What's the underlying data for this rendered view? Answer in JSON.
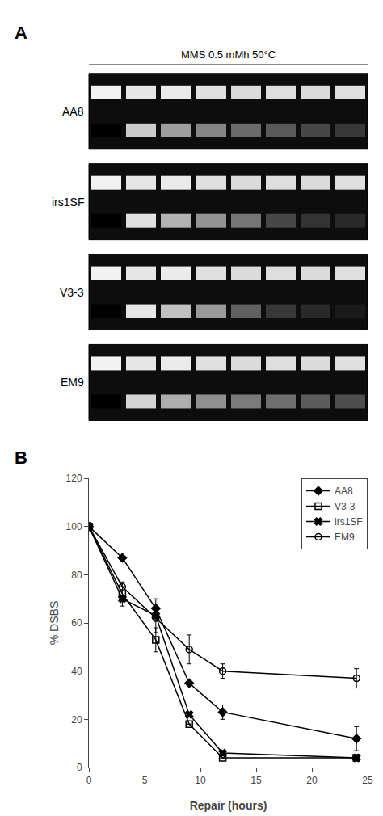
{
  "chart_data": [
    {
      "type": "heatmap",
      "title": "MMS 0.5 mMh 50°C",
      "annotations": [
        "A"
      ],
      "tick_labels": false,
      "zlim": [
        0,
        1
      ],
      "series": [
        {
          "name": "AA8",
          "values": [
            [
              0.0,
              0.8,
              0.62,
              0.52,
              0.42,
              0.35,
              0.28,
              0.22
            ],
            [
              0.95,
              0.9,
              0.92,
              0.88,
              0.86,
              0.87,
              0.86,
              0.88
            ]
          ]
        },
        {
          "name": "irs1SF",
          "values": [
            [
              0.0,
              0.88,
              0.7,
              0.58,
              0.46,
              0.28,
              0.2,
              0.16
            ],
            [
              0.95,
              0.9,
              0.92,
              0.88,
              0.86,
              0.87,
              0.86,
              0.88
            ]
          ]
        },
        {
          "name": "V3-3",
          "values": [
            [
              0.0,
              0.9,
              0.76,
              0.6,
              0.38,
              0.22,
              0.16,
              0.1
            ],
            [
              0.95,
              0.9,
              0.92,
              0.88,
              0.86,
              0.87,
              0.86,
              0.88
            ]
          ]
        },
        {
          "name": "EM9",
          "values": [
            [
              0.0,
              0.83,
              0.68,
              0.56,
              0.48,
              0.43,
              0.36,
              0.3
            ],
            [
              0.95,
              0.9,
              0.92,
              0.88,
              0.86,
              0.87,
              0.86,
              0.88
            ]
          ]
        }
      ]
    },
    {
      "type": "line",
      "annotations": [
        "B"
      ],
      "xlabel": "Repair (hours)",
      "ylabel": "% DSBS",
      "xlim": [
        0,
        25
      ],
      "ylim": [
        0,
        120
      ],
      "xticks": [
        0,
        5,
        10,
        15,
        20,
        25
      ],
      "yticks": [
        0,
        20,
        40,
        60,
        80,
        100,
        120
      ],
      "grid": false,
      "legend": "upper right",
      "series": [
        {
          "name": "AA8",
          "color": "black",
          "marker": "diamond",
          "x": [
            0,
            3,
            6,
            9,
            12,
            24
          ],
          "values": [
            100,
            87,
            66,
            35,
            23,
            12
          ],
          "error": [
            0,
            0,
            0,
            0,
            3,
            5
          ]
        },
        {
          "name": "V3-3",
          "color": "black",
          "marker": "square-open",
          "x": [
            0,
            3,
            6,
            9,
            12,
            24
          ],
          "values": [
            100,
            72,
            53,
            18,
            4,
            4
          ],
          "error": [
            0,
            5,
            5,
            0,
            0,
            1
          ]
        },
        {
          "name": "irs1SF",
          "color": "black",
          "marker": "x",
          "x": [
            0,
            3,
            6,
            9,
            12,
            24
          ],
          "values": [
            100,
            70,
            63,
            22,
            6,
            4
          ],
          "error": [
            0,
            0,
            7,
            0,
            0,
            1
          ]
        },
        {
          "name": "EM9",
          "color": "black",
          "marker": "circle-open",
          "x": [
            0,
            3,
            6,
            9,
            12,
            24
          ],
          "values": [
            100,
            75,
            62,
            49,
            40,
            37
          ],
          "error": [
            0,
            0,
            0,
            6,
            3,
            4
          ]
        }
      ]
    }
  ]
}
